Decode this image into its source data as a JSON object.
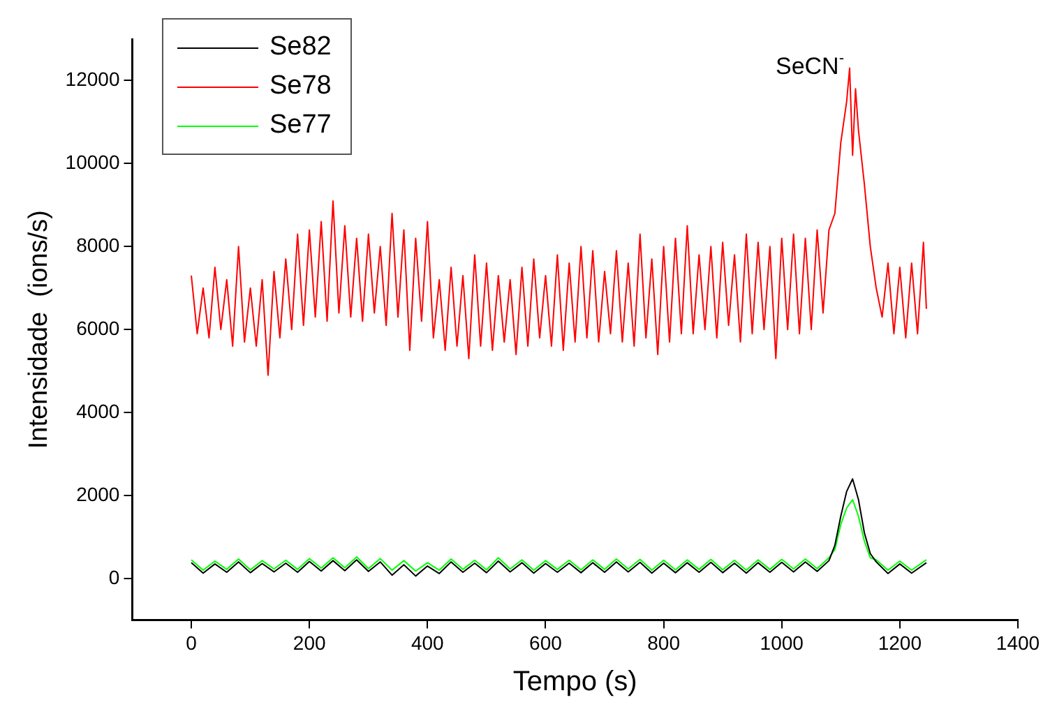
{
  "chart_data": {
    "type": "line",
    "xlabel": "Tempo (s)",
    "ylabel": "Intensidade  (ions/s)",
    "xlim": [
      -100,
      1400
    ],
    "xticks": [
      0,
      200,
      400,
      600,
      800,
      1000,
      1200,
      1400
    ],
    "ylim": [
      -1000,
      13000
    ],
    "yticks": [
      0,
      2000,
      4000,
      6000,
      8000,
      10000,
      12000
    ],
    "grid": false,
    "legend": "top left",
    "marker": "none",
    "line_style": "solid",
    "annotations": [
      {
        "text": "SeCN$^{-}$",
        "x": 1115,
        "y": 12300
      }
    ],
    "series": [
      {
        "name": "Se82",
        "color": "#000000",
        "x": [
          0,
          20,
          40,
          60,
          80,
          100,
          120,
          140,
          160,
          180,
          200,
          220,
          240,
          260,
          280,
          300,
          320,
          340,
          360,
          380,
          400,
          420,
          440,
          460,
          480,
          500,
          520,
          540,
          560,
          580,
          600,
          620,
          640,
          660,
          680,
          700,
          720,
          740,
          760,
          780,
          800,
          820,
          840,
          860,
          880,
          900,
          920,
          940,
          960,
          980,
          1000,
          1020,
          1040,
          1060,
          1080,
          1090,
          1100,
          1110,
          1120,
          1130,
          1140,
          1150,
          1160,
          1180,
          1200,
          1220,
          1245
        ],
        "values": [
          380,
          130,
          350,
          150,
          400,
          140,
          360,
          160,
          370,
          150,
          410,
          180,
          430,
          190,
          450,
          170,
          400,
          80,
          330,
          60,
          300,
          120,
          400,
          150,
          370,
          140,
          420,
          160,
          380,
          130,
          360,
          150,
          370,
          140,
          380,
          150,
          400,
          160,
          390,
          130,
          370,
          140,
          380,
          150,
          390,
          140,
          370,
          130,
          380,
          150,
          390,
          160,
          400,
          170,
          430,
          800,
          1500,
          2100,
          2400,
          1900,
          1100,
          600,
          400,
          120,
          350,
          130,
          380
        ]
      },
      {
        "name": "Se78",
        "color": "#ff0000",
        "x": [
          0,
          10,
          20,
          30,
          40,
          50,
          60,
          70,
          80,
          90,
          100,
          110,
          120,
          130,
          140,
          150,
          160,
          170,
          180,
          190,
          200,
          210,
          220,
          230,
          240,
          250,
          260,
          270,
          280,
          290,
          300,
          310,
          320,
          330,
          340,
          350,
          360,
          370,
          380,
          390,
          400,
          410,
          420,
          430,
          440,
          450,
          460,
          470,
          480,
          490,
          500,
          510,
          520,
          530,
          540,
          550,
          560,
          570,
          580,
          590,
          600,
          610,
          620,
          630,
          640,
          650,
          660,
          670,
          680,
          690,
          700,
          710,
          720,
          730,
          740,
          750,
          760,
          770,
          780,
          790,
          800,
          810,
          820,
          830,
          840,
          850,
          860,
          870,
          880,
          890,
          900,
          910,
          920,
          930,
          940,
          950,
          960,
          970,
          980,
          990,
          1000,
          1010,
          1020,
          1030,
          1040,
          1050,
          1060,
          1070,
          1080,
          1090,
          1100,
          1110,
          1115,
          1120,
          1125,
          1130,
          1140,
          1150,
          1160,
          1170,
          1180,
          1190,
          1200,
          1210,
          1220,
          1230,
          1240,
          1245
        ],
        "values": [
          7300,
          5900,
          7000,
          5800,
          7500,
          6000,
          7200,
          5600,
          8000,
          5700,
          7000,
          5600,
          7200,
          4900,
          7400,
          5800,
          7700,
          6000,
          8300,
          6100,
          8400,
          6300,
          8600,
          6200,
          9100,
          6400,
          8500,
          6300,
          8200,
          6200,
          8300,
          6400,
          8000,
          6100,
          8800,
          6300,
          8400,
          5500,
          8200,
          6200,
          8600,
          5800,
          7200,
          5500,
          7500,
          5600,
          7300,
          5300,
          7800,
          5600,
          7600,
          5500,
          7300,
          5700,
          7200,
          5400,
          7500,
          5600,
          7700,
          5800,
          7300,
          5600,
          7800,
          5500,
          7600,
          5700,
          8000,
          5800,
          7900,
          5700,
          7400,
          5900,
          7900,
          5700,
          7600,
          5600,
          8300,
          5800,
          7700,
          5400,
          8000,
          5700,
          8200,
          5900,
          8500,
          5900,
          7800,
          6000,
          8000,
          5800,
          8100,
          6100,
          7800,
          5700,
          8300,
          5900,
          8100,
          6000,
          8000,
          5300,
          8200,
          6000,
          8300,
          5900,
          8200,
          6000,
          8400,
          6400,
          8400,
          8800,
          10500,
          11500,
          12300,
          10200,
          11800,
          10800,
          9500,
          8000,
          7000,
          6300,
          7600,
          5900,
          7500,
          5800,
          7600,
          5900,
          8100,
          6500
        ]
      },
      {
        "name": "Se77",
        "color": "#00ff00",
        "x": [
          0,
          20,
          40,
          60,
          80,
          100,
          120,
          140,
          160,
          180,
          200,
          220,
          240,
          260,
          280,
          300,
          320,
          340,
          360,
          380,
          400,
          420,
          440,
          460,
          480,
          500,
          520,
          540,
          560,
          580,
          600,
          620,
          640,
          660,
          680,
          700,
          720,
          740,
          760,
          780,
          800,
          820,
          840,
          860,
          880,
          900,
          920,
          940,
          960,
          980,
          1000,
          1020,
          1040,
          1060,
          1080,
          1090,
          1100,
          1110,
          1120,
          1130,
          1140,
          1150,
          1160,
          1180,
          1200,
          1220,
          1245
        ],
        "values": [
          450,
          200,
          420,
          220,
          470,
          210,
          430,
          230,
          440,
          220,
          480,
          250,
          500,
          260,
          520,
          240,
          480,
          200,
          430,
          180,
          380,
          200,
          470,
          220,
          440,
          210,
          500,
          230,
          450,
          200,
          430,
          220,
          440,
          210,
          450,
          220,
          470,
          230,
          460,
          200,
          440,
          210,
          450,
          220,
          460,
          210,
          440,
          200,
          450,
          220,
          460,
          230,
          470,
          240,
          500,
          700,
          1300,
          1700,
          1900,
          1500,
          900,
          500,
          450,
          200,
          420,
          200,
          450
        ]
      }
    ]
  }
}
